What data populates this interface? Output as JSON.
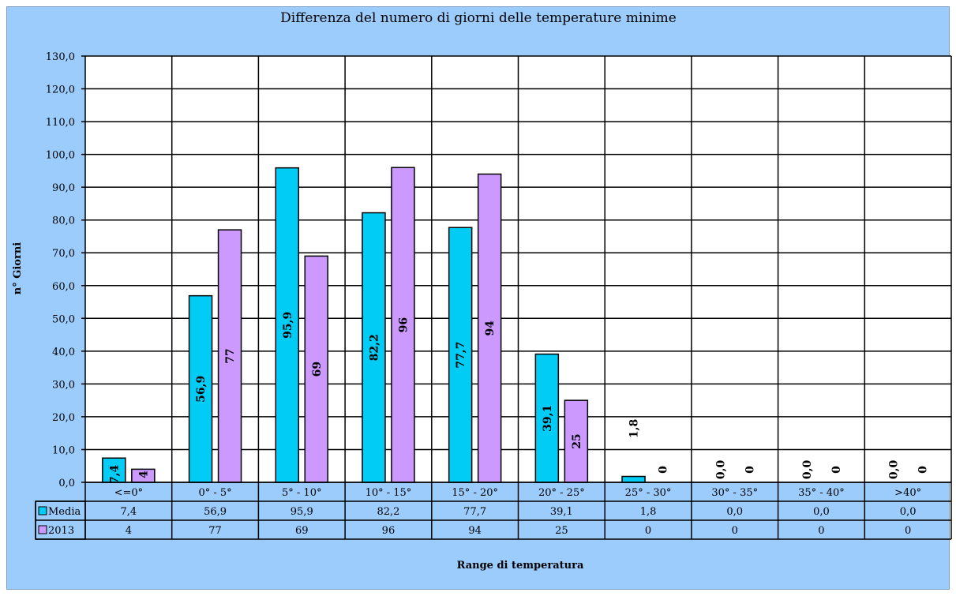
{
  "colors": {
    "background": "#9cccfc",
    "plot_area": "#ffffff",
    "media": "#00ccf5",
    "y2013": "#cc99ff",
    "grid": "#000000"
  },
  "chart_data": {
    "type": "bar",
    "title": "Differenza del numero di giorni delle temperature minime",
    "xlabel": "Range di temperatura",
    "ylabel": "n° Giorni",
    "ylim": [
      0,
      130
    ],
    "yticks": [
      "0,0",
      "10,0",
      "20,0",
      "30,0",
      "40,0",
      "50,0",
      "60,0",
      "70,0",
      "80,0",
      "90,0",
      "100,0",
      "110,0",
      "120,0",
      "130,0"
    ],
    "grid": true,
    "legend": "data-table",
    "categories": [
      "<=0°",
      "0° - 5°",
      "5° - 10°",
      "10° - 15°",
      "15° - 20°",
      "20° - 25°",
      "25° - 30°",
      "30° - 35°",
      "35° - 40°",
      ">40°"
    ],
    "series": [
      {
        "name": "Media",
        "values": [
          7.4,
          56.9,
          95.9,
          82.2,
          77.7,
          39.1,
          1.8,
          0.0,
          0.0,
          0.0
        ],
        "labels": [
          "7,4",
          "56,9",
          "95,9",
          "82,2",
          "77,7",
          "39,1",
          "1,8",
          "0,0",
          "0,0",
          "0,0"
        ]
      },
      {
        "name": "2013",
        "values": [
          4,
          77,
          69,
          96,
          94,
          25,
          0,
          0,
          0,
          0
        ],
        "labels": [
          "4",
          "77",
          "69",
          "96",
          "94",
          "25",
          "0",
          "0",
          "0",
          "0"
        ]
      }
    ]
  }
}
